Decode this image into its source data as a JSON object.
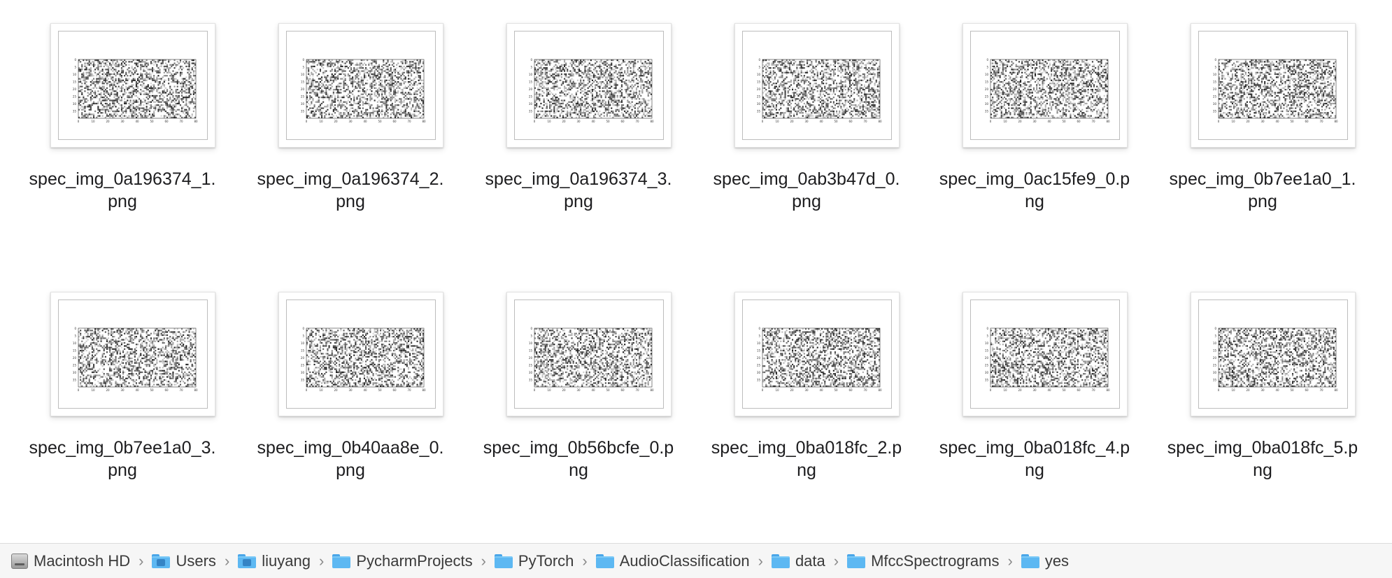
{
  "files": [
    {
      "name": "spec_img_0a196374_1.png",
      "seed": 11
    },
    {
      "name": "spec_img_0a196374_2.png",
      "seed": 23
    },
    {
      "name": "spec_img_0a196374_3.png",
      "seed": 37
    },
    {
      "name": "spec_img_0ab3b47d_0.png",
      "seed": 41
    },
    {
      "name": "spec_img_0ac15fe9_0.png",
      "seed": 53
    },
    {
      "name": "spec_img_0b7ee1a0_1.png",
      "seed": 67
    },
    {
      "name": "spec_img_0b7ee1a0_3.png",
      "seed": 71
    },
    {
      "name": "spec_img_0b40aa8e_0.png",
      "seed": 83
    },
    {
      "name": "spec_img_0b56bcfe_0.png",
      "seed": 97
    },
    {
      "name": "spec_img_0ba018fc_2.png",
      "seed": 101
    },
    {
      "name": "spec_img_0ba018fc_4.png",
      "seed": 113
    },
    {
      "name": "spec_img_0ba018fc_5.png",
      "seed": 127
    }
  ],
  "thumbnail_axes": {
    "x_ticks": [
      "0",
      "10",
      "20",
      "30",
      "40",
      "50",
      "60",
      "70",
      "80"
    ],
    "y_ticks": [
      "0",
      "5",
      "10",
      "15",
      "20",
      "25",
      "30",
      "35"
    ]
  },
  "path_bar": [
    {
      "label": "Macintosh HD",
      "icon": "disk-icon"
    },
    {
      "label": "Users",
      "icon": "users-folder-icon"
    },
    {
      "label": "liuyang",
      "icon": "home-folder-icon"
    },
    {
      "label": "PycharmProjects",
      "icon": "folder-icon"
    },
    {
      "label": "PyTorch",
      "icon": "folder-icon"
    },
    {
      "label": "AudioClassification",
      "icon": "folder-icon"
    },
    {
      "label": "data",
      "icon": "folder-icon"
    },
    {
      "label": "MfccSpectrograms",
      "icon": "folder-icon"
    },
    {
      "label": "yes",
      "icon": "folder-icon"
    }
  ],
  "path_separator": "›"
}
